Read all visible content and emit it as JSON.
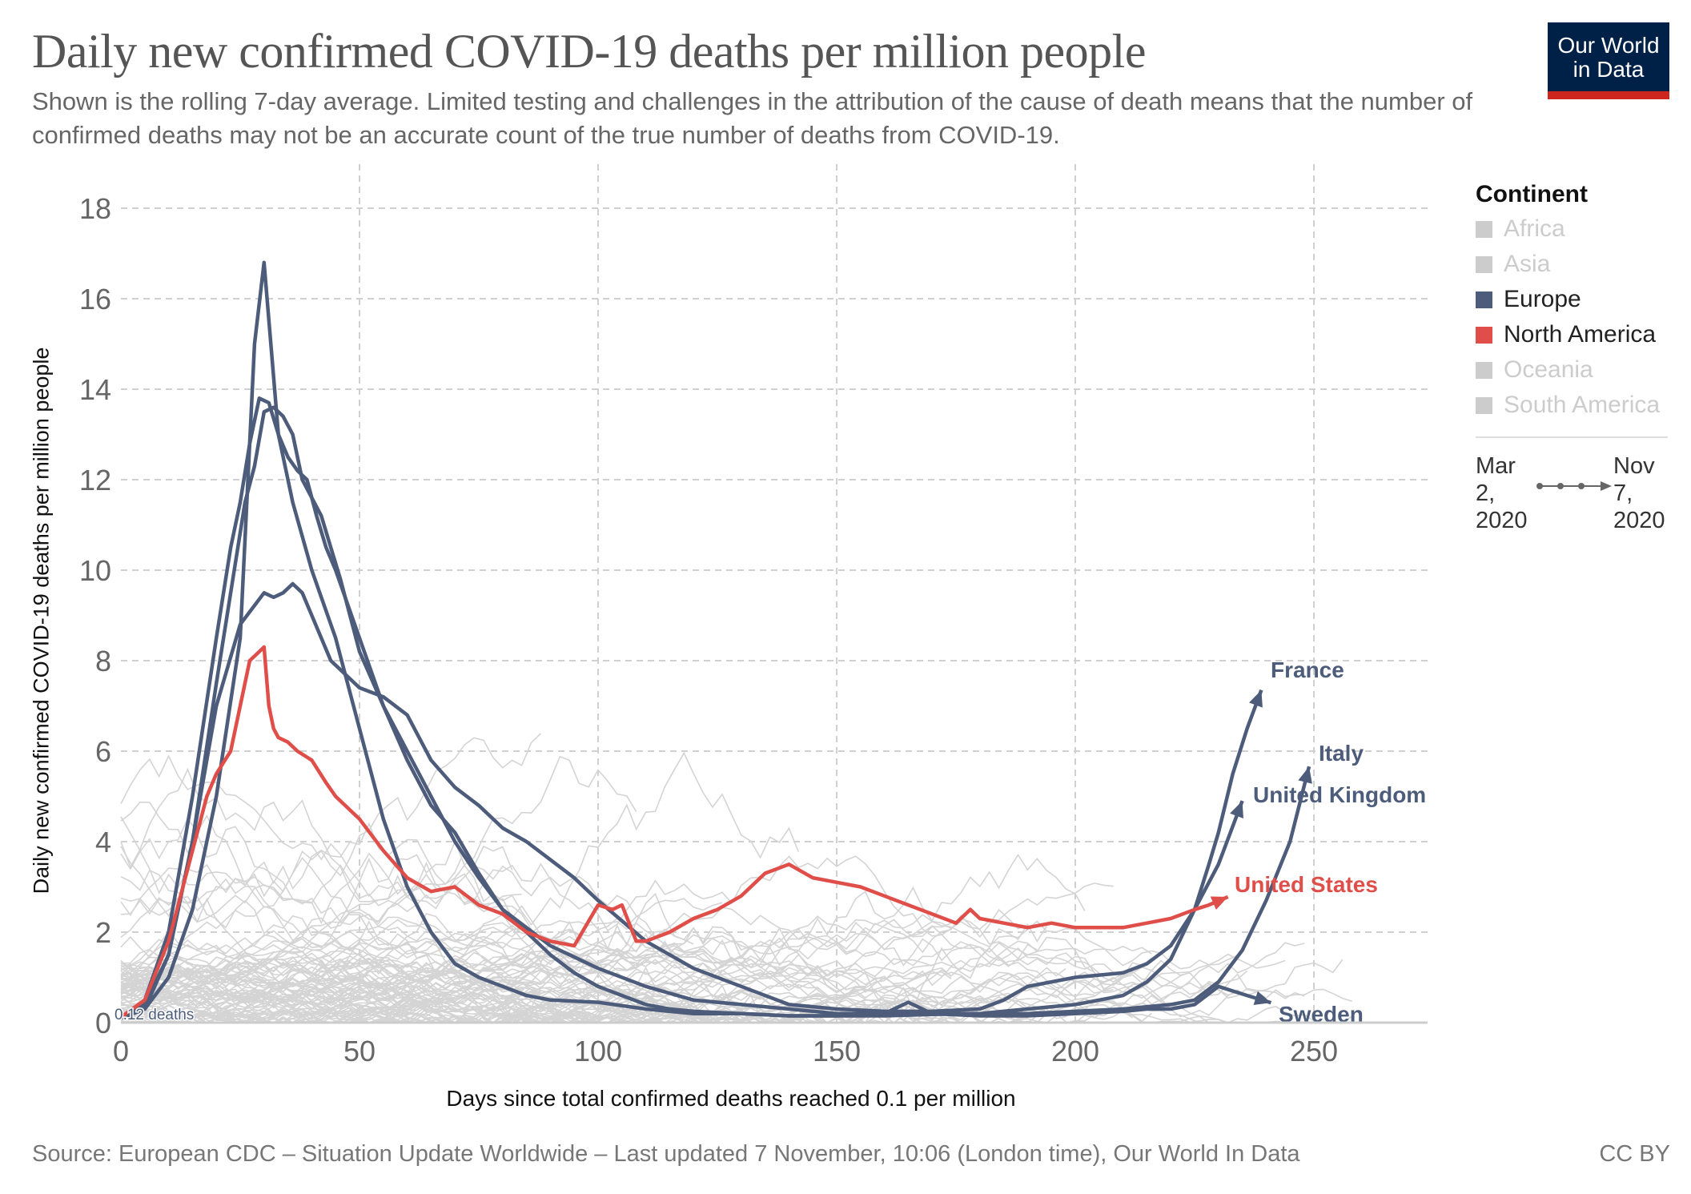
{
  "header": {
    "title": "Daily new confirmed COVID-19 deaths per million people",
    "subtitle": "Shown is the rolling 7-day average. Limited testing and challenges in the attribution of the cause of death means that the number of confirmed deaths may not be an accurate count of the true number of deaths from COVID-19.",
    "logo_line1": "Our World",
    "logo_line2": "in Data"
  },
  "legend": {
    "title": "Continent",
    "items": [
      {
        "label": "Africa",
        "color": "#cccccc",
        "active": false
      },
      {
        "label": "Asia",
        "color": "#cccccc",
        "active": false
      },
      {
        "label": "Europe",
        "color": "#4c5c7a",
        "active": true
      },
      {
        "label": "North America",
        "color": "#e04e4a",
        "active": true
      },
      {
        "label": "Oceania",
        "color": "#cccccc",
        "active": false
      },
      {
        "label": "South America",
        "color": "#cccccc",
        "active": false
      }
    ]
  },
  "timeline": {
    "start_line1": "Mar",
    "start_line2": "2,",
    "start_line3": "2020",
    "end_line1": "Nov",
    "end_line2": "7,",
    "end_line3": "2020"
  },
  "footer": {
    "source": "Source: European CDC – Situation Update Worldwide – Last updated 7 November, 10:06 (London time), Our World In Data",
    "license": "CC BY"
  },
  "chart_data": {
    "type": "line",
    "title": "Daily new confirmed COVID-19 deaths per million people",
    "xlabel": "Days since total confirmed deaths reached 0.1 per million",
    "ylabel": "Daily new confirmed COVID-19 deaths per million people",
    "xlim": [
      0,
      274
    ],
    "ylim": [
      0,
      18.5
    ],
    "xticks": [
      0,
      50,
      100,
      150,
      200,
      250
    ],
    "yticks": [
      0,
      2,
      4,
      6,
      8,
      10,
      12,
      14,
      16,
      18
    ],
    "grid": true,
    "legend_position": "right",
    "start_annotation": "0.12 deaths",
    "colors": {
      "europe": "#4c5c7a",
      "north_america": "#e04e4a",
      "background": "#d4d4d4"
    },
    "series": [
      {
        "name": "France",
        "continent": "Europe",
        "labeled": true,
        "x": [
          0,
          5,
          10,
          15,
          20,
          23,
          26,
          28,
          30,
          32,
          34,
          36,
          38,
          40,
          42,
          44,
          46,
          48,
          50,
          55,
          60,
          65,
          70,
          75,
          80,
          85,
          90,
          95,
          100,
          105,
          110,
          115,
          120,
          130,
          140,
          150,
          160,
          170,
          180,
          190,
          200,
          205,
          210,
          215,
          220,
          225,
          228,
          230,
          233,
          236,
          239
        ],
        "y": [
          0.1,
          0.4,
          1.5,
          4.0,
          7.5,
          9.5,
          11.5,
          12.3,
          13.5,
          13.6,
          13.4,
          13.0,
          12.0,
          11.6,
          11.2,
          10.5,
          9.8,
          9.0,
          8.2,
          7.0,
          5.8,
          4.8,
          4.2,
          3.3,
          2.5,
          2.0,
          1.5,
          1.1,
          0.8,
          0.6,
          0.4,
          0.3,
          0.25,
          0.2,
          0.15,
          0.15,
          0.15,
          0.18,
          0.2,
          0.3,
          0.4,
          0.5,
          0.6,
          0.9,
          1.4,
          2.5,
          3.5,
          4.2,
          5.5,
          6.5,
          7.35
        ]
      },
      {
        "name": "Italy",
        "continent": "Europe",
        "labeled": true,
        "x": [
          0,
          5,
          10,
          15,
          20,
          23,
          25,
          27,
          29,
          31,
          33,
          35,
          37,
          39,
          41,
          43,
          45,
          50,
          55,
          60,
          65,
          70,
          75,
          80,
          90,
          100,
          110,
          120,
          130,
          140,
          150,
          160,
          170,
          180,
          190,
          200,
          210,
          220,
          225,
          230,
          235,
          240,
          245,
          249
        ],
        "y": [
          0.1,
          0.5,
          2.0,
          5.0,
          8.5,
          10.5,
          11.5,
          12.8,
          13.8,
          13.7,
          13.0,
          12.5,
          12.2,
          12.0,
          11.2,
          10.5,
          10.0,
          8.5,
          7.0,
          6.0,
          5.0,
          4.0,
          3.2,
          2.5,
          1.7,
          1.2,
          0.8,
          0.5,
          0.4,
          0.3,
          0.2,
          0.2,
          0.2,
          0.2,
          0.2,
          0.25,
          0.3,
          0.4,
          0.5,
          0.9,
          1.6,
          2.7,
          4.0,
          5.66
        ]
      },
      {
        "name": "United Kingdom",
        "continent": "Europe",
        "labeled": true,
        "x": [
          0,
          5,
          10,
          15,
          20,
          25,
          30,
          32,
          34,
          36,
          38,
          40,
          42,
          44,
          46,
          48,
          50,
          55,
          60,
          65,
          70,
          75,
          80,
          85,
          90,
          95,
          100,
          110,
          120,
          130,
          140,
          150,
          160,
          170,
          180,
          185,
          190,
          200,
          210,
          215,
          220,
          225,
          230,
          235
        ],
        "y": [
          0.1,
          0.3,
          1.5,
          4.0,
          7.0,
          8.8,
          9.5,
          9.4,
          9.5,
          9.7,
          9.5,
          9.0,
          8.5,
          8.0,
          7.8,
          7.6,
          7.4,
          7.2,
          6.8,
          5.8,
          5.2,
          4.8,
          4.3,
          4.0,
          3.6,
          3.2,
          2.7,
          1.8,
          1.2,
          0.8,
          0.4,
          0.3,
          0.25,
          0.25,
          0.3,
          0.5,
          0.8,
          1.0,
          1.1,
          1.3,
          1.7,
          2.5,
          3.5,
          4.9
        ]
      },
      {
        "name": "Sweden",
        "continent": "Europe",
        "labeled": true,
        "x": [
          0,
          5,
          10,
          15,
          20,
          25,
          28,
          30,
          33,
          36,
          40,
          45,
          50,
          55,
          60,
          65,
          70,
          75,
          80,
          85,
          90,
          100,
          110,
          120,
          130,
          140,
          150,
          160,
          165,
          170,
          180,
          190,
          200,
          210,
          215,
          220,
          225,
          230,
          233,
          236,
          241
        ],
        "y": [
          0.1,
          0.3,
          1.0,
          2.5,
          5.0,
          8.5,
          15.0,
          16.8,
          13.0,
          11.5,
          10.0,
          8.5,
          6.5,
          4.5,
          3.0,
          2.0,
          1.3,
          1.0,
          0.8,
          0.6,
          0.5,
          0.45,
          0.3,
          0.2,
          0.2,
          0.15,
          0.15,
          0.2,
          0.45,
          0.2,
          0.15,
          0.15,
          0.2,
          0.25,
          0.3,
          0.3,
          0.4,
          0.8,
          0.7,
          0.6,
          0.44
        ]
      },
      {
        "name": "United States",
        "continent": "North America",
        "labeled": true,
        "x": [
          0,
          5,
          10,
          15,
          18,
          20,
          23,
          25,
          27,
          29,
          30,
          31,
          32,
          33,
          35,
          37,
          40,
          43,
          45,
          50,
          55,
          60,
          65,
          70,
          75,
          80,
          85,
          90,
          95,
          100,
          103,
          105,
          108,
          110,
          115,
          120,
          125,
          130,
          135,
          140,
          145,
          150,
          155,
          160,
          165,
          170,
          175,
          178,
          180,
          185,
          190,
          195,
          200,
          205,
          210,
          215,
          220,
          225,
          228,
          232
        ],
        "y": [
          0.12,
          0.5,
          1.8,
          3.8,
          5.0,
          5.5,
          6.0,
          7.0,
          8.0,
          8.2,
          8.3,
          7.0,
          6.5,
          6.3,
          6.2,
          6.0,
          5.8,
          5.3,
          5.0,
          4.5,
          3.8,
          3.2,
          2.9,
          3.0,
          2.6,
          2.4,
          2.0,
          1.8,
          1.7,
          2.6,
          2.5,
          2.6,
          1.8,
          1.8,
          2.0,
          2.3,
          2.5,
          2.8,
          3.3,
          3.5,
          3.2,
          3.1,
          3.0,
          2.8,
          2.6,
          2.4,
          2.2,
          2.5,
          2.3,
          2.2,
          2.1,
          2.2,
          2.1,
          2.1,
          2.1,
          2.2,
          2.3,
          2.5,
          2.6,
          2.78
        ]
      }
    ]
  }
}
